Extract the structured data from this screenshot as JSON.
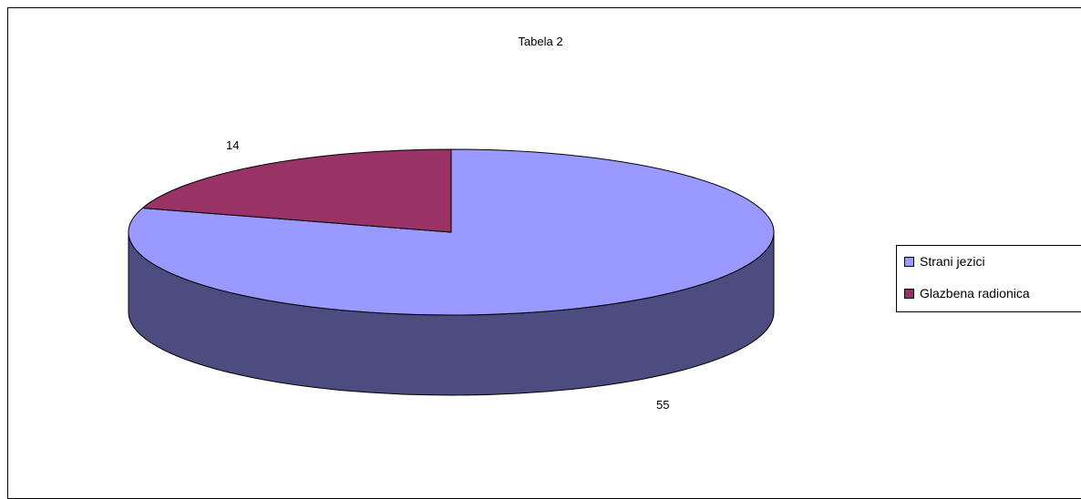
{
  "chart_data": {
    "type": "pie",
    "title": "Tabela 2",
    "style": "3d",
    "categories": [
      "Strani jezici",
      "Glazbena radionica"
    ],
    "values": [
      55,
      14
    ],
    "colors": [
      "#9999ff",
      "#993366"
    ],
    "side_colors": [
      "#4c4c80",
      "#4d1a33"
    ],
    "legend": {
      "position": "right",
      "entries": [
        "Strani jezici",
        "Glazbena radionica"
      ]
    },
    "data_labels": [
      "55",
      "14"
    ]
  }
}
